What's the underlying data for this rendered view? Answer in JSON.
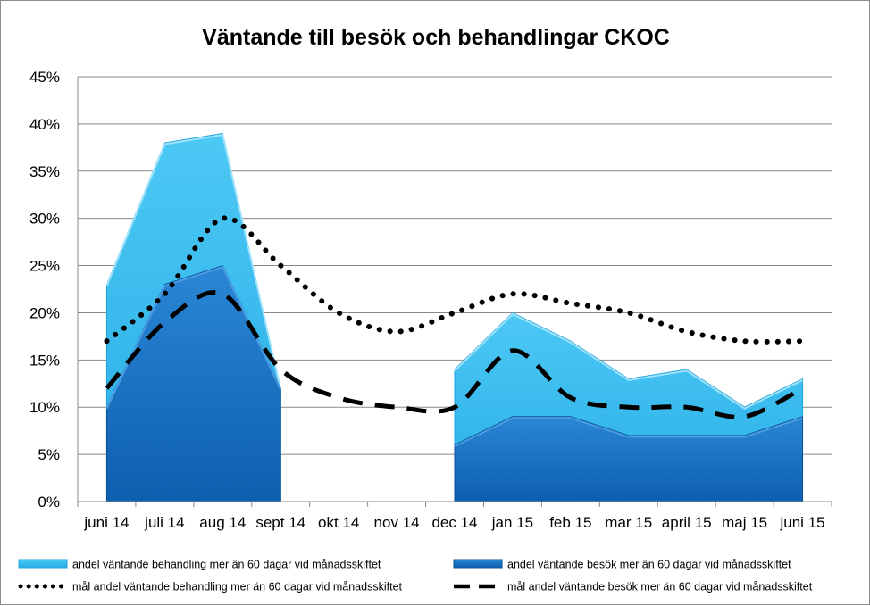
{
  "chart_data": {
    "type": "area",
    "title": "Väntande till besök och behandlingar CKOC",
    "xlabel": "",
    "ylabel": "",
    "categories": [
      "juni 14",
      "juli 14",
      "aug 14",
      "sept 14",
      "okt 14",
      "nov 14",
      "dec 14",
      "jan 15",
      "feb 15",
      "mar 15",
      "april 15",
      "maj 15",
      "juni 15"
    ],
    "y_ticks": [
      "0%",
      "5%",
      "10%",
      "15%",
      "20%",
      "25%",
      "30%",
      "35%",
      "40%",
      "45%"
    ],
    "ylim": [
      0,
      45
    ],
    "grid": true,
    "legend_position": "bottom",
    "series": [
      {
        "name": "andel väntande behandling mer än 60 dagar vid månadsskiftet",
        "kind": "area",
        "color": "#3dc0f0",
        "values": [
          23,
          38,
          39,
          12,
          null,
          null,
          14,
          20,
          17,
          13,
          14,
          10,
          13
        ]
      },
      {
        "name": "andel väntande besök mer än 60 dagar vid månadsskiftet",
        "kind": "area",
        "color": "#1672c4",
        "values": [
          10,
          23,
          25,
          12,
          null,
          null,
          6,
          9,
          9,
          7,
          7,
          7,
          9
        ]
      },
      {
        "name": "mål andel väntande behandling mer än 60 dagar vid månadsskiftet",
        "kind": "line-dotted",
        "color": "#000000",
        "values": [
          17,
          22,
          30,
          25,
          20,
          18,
          20,
          22,
          21,
          20,
          18,
          17,
          17
        ]
      },
      {
        "name": "mål andel  väntande besök mer än 60 dagar vid månadsskiftet",
        "kind": "line-dashed",
        "color": "#000000",
        "values": [
          12,
          19,
          22,
          14,
          11,
          10,
          10,
          16,
          11,
          10,
          10,
          9,
          12
        ]
      }
    ]
  }
}
